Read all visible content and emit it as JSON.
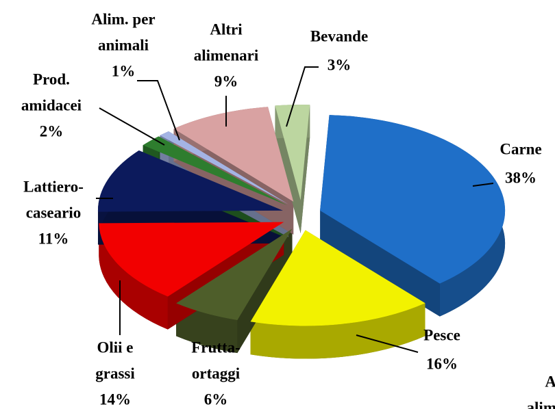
{
  "chart_data": {
    "type": "pie",
    "categories": [
      [
        "Carne"
      ],
      [
        "Pesce"
      ],
      [
        "Frutta-",
        "ortaggi"
      ],
      [
        "Olii e",
        "grassi"
      ],
      [
        "Lattiero-",
        "caseario"
      ],
      [
        "Prod.",
        "amidacei"
      ],
      [
        "Alim. per",
        "animali"
      ],
      [
        "Altri",
        "alimenari"
      ],
      [
        "Bevande"
      ]
    ],
    "values": [
      38,
      16,
      6,
      14,
      11,
      2,
      1,
      9,
      3
    ],
    "value_labels": [
      "38%",
      "16%",
      "6%",
      "14%",
      "11%",
      "2%",
      "1%",
      "9%",
      "3%"
    ],
    "colors": [
      "#1f6fc8",
      "#f2f200",
      "#4e5e2a",
      "#f20000",
      "#0c1a5c",
      "#2e7d2e",
      "#a4b4e4",
      "#d9a2a2",
      "#bcd6a0"
    ],
    "annotations": [
      "A",
      "alim"
    ]
  }
}
